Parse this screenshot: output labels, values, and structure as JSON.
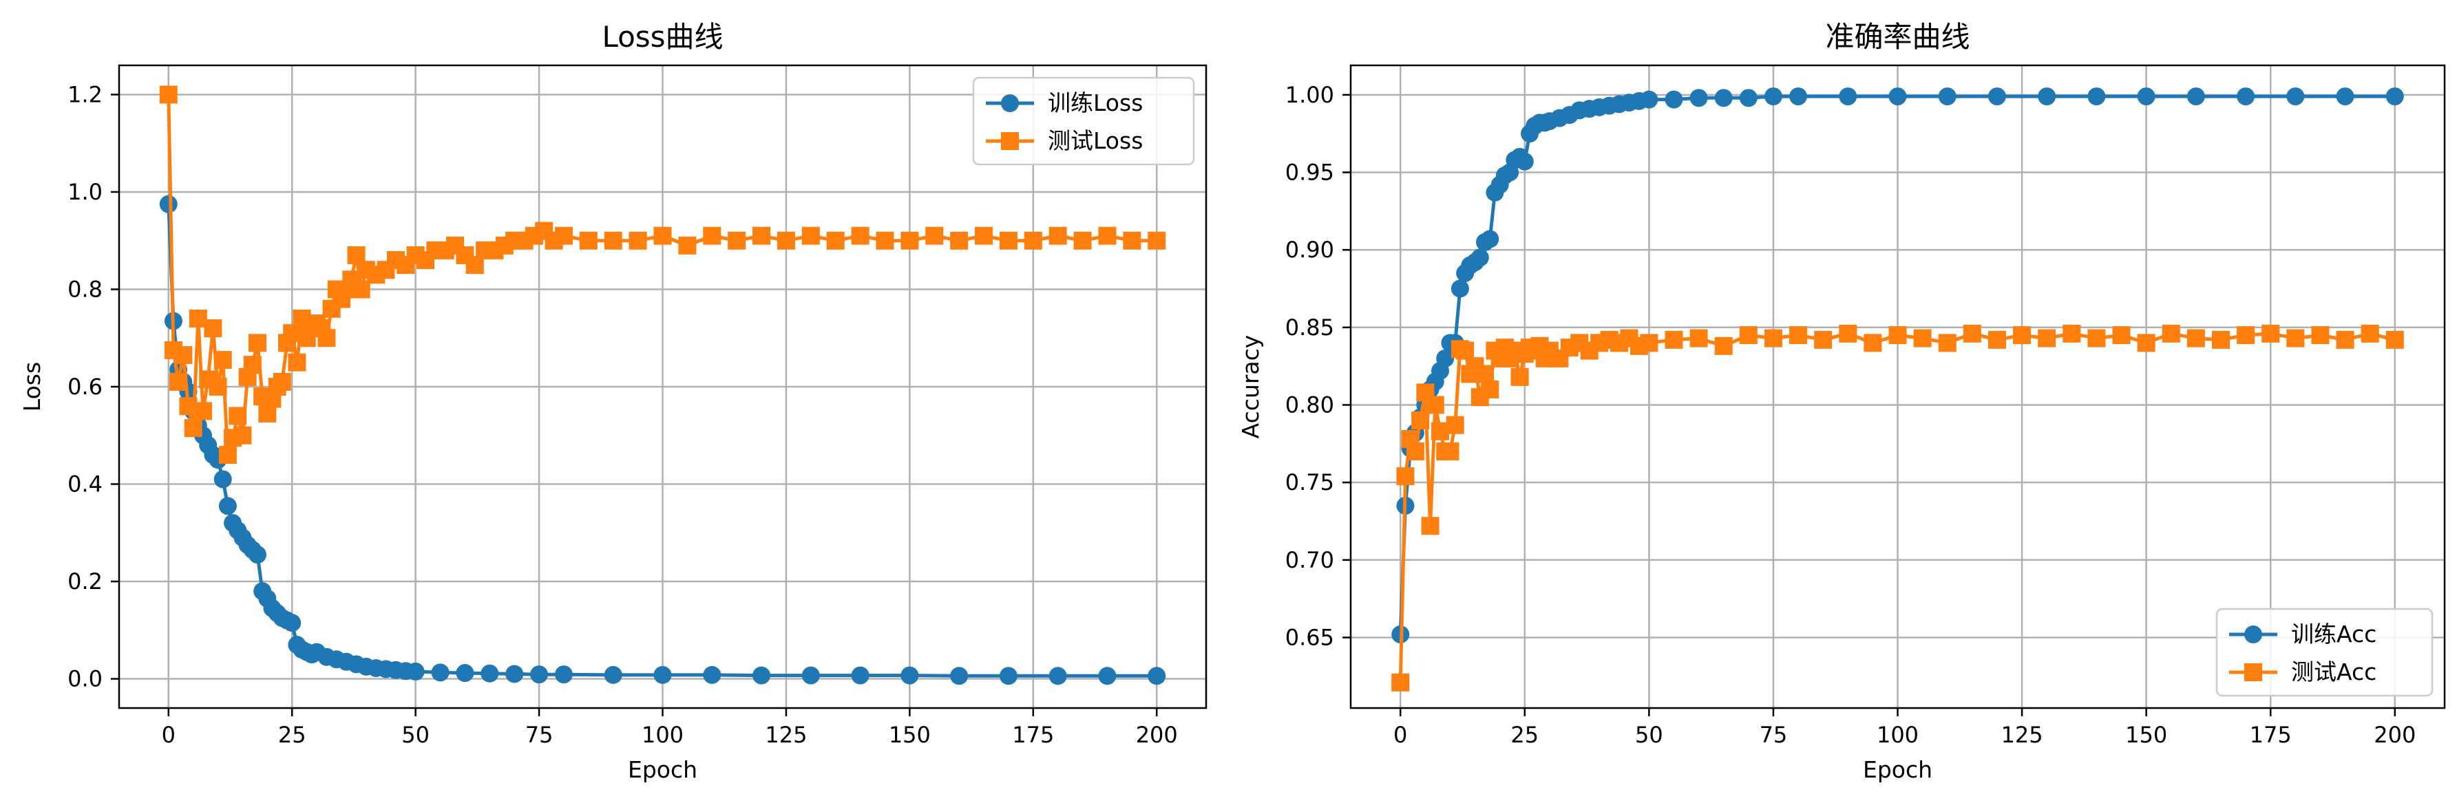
{
  "colors": {
    "train": "#1f77b4",
    "test": "#ff7f0e",
    "grid": "#b0b0b0"
  },
  "chart_data": [
    {
      "type": "line",
      "title": "Loss曲线",
      "xlabel": "Epoch",
      "ylabel": "Loss",
      "xlim": [
        -10,
        210
      ],
      "ylim": [
        -0.06,
        1.26
      ],
      "xticks": [
        0,
        25,
        50,
        75,
        100,
        125,
        150,
        175,
        200
      ],
      "yticks": [
        0.0,
        0.2,
        0.4,
        0.6,
        0.8,
        1.0,
        1.2
      ],
      "ytick_labels": [
        "0.0",
        "0.2",
        "0.4",
        "0.6",
        "0.8",
        "1.0",
        "1.2"
      ],
      "grid": true,
      "legend_position": "upper-right",
      "series": [
        {
          "name": "训练Loss",
          "marker": "circle",
          "x": [
            0,
            1,
            2,
            3,
            4,
            5,
            6,
            7,
            8,
            9,
            10,
            11,
            12,
            13,
            14,
            15,
            16,
            17,
            18,
            19,
            20,
            21,
            22,
            23,
            24,
            25,
            26,
            27,
            28,
            29,
            30,
            32,
            34,
            36,
            38,
            40,
            42,
            44,
            46,
            48,
            50,
            55,
            60,
            65,
            70,
            75,
            80,
            90,
            100,
            110,
            120,
            130,
            140,
            150,
            160,
            170,
            180,
            190,
            200
          ],
          "values": [
            0.975,
            0.735,
            0.635,
            0.61,
            0.59,
            0.55,
            0.52,
            0.5,
            0.48,
            0.46,
            0.45,
            0.41,
            0.355,
            0.32,
            0.305,
            0.29,
            0.275,
            0.265,
            0.255,
            0.18,
            0.165,
            0.145,
            0.135,
            0.125,
            0.12,
            0.115,
            0.07,
            0.06,
            0.055,
            0.05,
            0.055,
            0.045,
            0.04,
            0.035,
            0.03,
            0.025,
            0.022,
            0.02,
            0.018,
            0.016,
            0.015,
            0.013,
            0.012,
            0.011,
            0.01,
            0.009,
            0.009,
            0.008,
            0.008,
            0.008,
            0.007,
            0.007,
            0.007,
            0.007,
            0.006,
            0.006,
            0.006,
            0.006,
            0.006
          ]
        },
        {
          "name": "测试Loss",
          "marker": "square",
          "x": [
            0,
            1,
            2,
            3,
            4,
            5,
            6,
            7,
            8,
            9,
            10,
            11,
            12,
            13,
            14,
            15,
            16,
            17,
            18,
            19,
            20,
            21,
            22,
            23,
            24,
            25,
            26,
            27,
            28,
            29,
            30,
            31,
            32,
            33,
            34,
            35,
            36,
            37,
            38,
            39,
            40,
            42,
            44,
            46,
            48,
            50,
            52,
            54,
            56,
            58,
            60,
            62,
            64,
            66,
            68,
            70,
            72,
            74,
            76,
            78,
            80,
            85,
            90,
            95,
            100,
            105,
            110,
            115,
            120,
            125,
            130,
            135,
            140,
            145,
            150,
            155,
            160,
            165,
            170,
            175,
            180,
            185,
            190,
            195,
            200
          ],
          "values": [
            1.2,
            0.675,
            0.61,
            0.665,
            0.56,
            0.515,
            0.74,
            0.55,
            0.615,
            0.72,
            0.6,
            0.655,
            0.46,
            0.495,
            0.54,
            0.5,
            0.62,
            0.645,
            0.69,
            0.58,
            0.545,
            0.575,
            0.6,
            0.61,
            0.69,
            0.71,
            0.65,
            0.74,
            0.7,
            0.73,
            0.73,
            0.72,
            0.7,
            0.76,
            0.8,
            0.78,
            0.8,
            0.82,
            0.87,
            0.8,
            0.84,
            0.83,
            0.84,
            0.86,
            0.85,
            0.87,
            0.86,
            0.88,
            0.88,
            0.89,
            0.87,
            0.85,
            0.88,
            0.88,
            0.89,
            0.9,
            0.9,
            0.91,
            0.92,
            0.9,
            0.91,
            0.9,
            0.9,
            0.9,
            0.91,
            0.89,
            0.91,
            0.9,
            0.91,
            0.9,
            0.91,
            0.9,
            0.91,
            0.9,
            0.9,
            0.91,
            0.9,
            0.91,
            0.9,
            0.9,
            0.91,
            0.9,
            0.91,
            0.9,
            0.9
          ]
        }
      ]
    },
    {
      "type": "line",
      "title": "准确率曲线",
      "xlabel": "Epoch",
      "ylabel": "Accuracy",
      "xlim": [
        -10,
        210
      ],
      "ylim": [
        0.6045,
        1.019
      ],
      "xticks": [
        0,
        25,
        50,
        75,
        100,
        125,
        150,
        175,
        200
      ],
      "yticks": [
        0.65,
        0.7,
        0.75,
        0.8,
        0.85,
        0.9,
        0.95,
        1.0
      ],
      "ytick_labels": [
        "0.65",
        "0.70",
        "0.75",
        "0.80",
        "0.85",
        "0.90",
        "0.95",
        "1.00"
      ],
      "grid": true,
      "legend_position": "lower-right",
      "series": [
        {
          "name": "训练Acc",
          "marker": "circle",
          "x": [
            0,
            1,
            2,
            3,
            4,
            5,
            6,
            7,
            8,
            9,
            10,
            11,
            12,
            13,
            14,
            15,
            16,
            17,
            18,
            19,
            20,
            21,
            22,
            23,
            24,
            25,
            26,
            27,
            28,
            29,
            30,
            32,
            34,
            36,
            38,
            40,
            42,
            44,
            46,
            48,
            50,
            55,
            60,
            65,
            70,
            75,
            80,
            90,
            100,
            110,
            120,
            130,
            140,
            150,
            160,
            170,
            180,
            190,
            200
          ],
          "values": [
            0.652,
            0.735,
            0.772,
            0.782,
            0.792,
            0.8,
            0.81,
            0.815,
            0.822,
            0.83,
            0.84,
            0.84,
            0.875,
            0.885,
            0.89,
            0.892,
            0.895,
            0.905,
            0.907,
            0.937,
            0.942,
            0.948,
            0.95,
            0.958,
            0.96,
            0.957,
            0.975,
            0.98,
            0.982,
            0.982,
            0.983,
            0.985,
            0.987,
            0.99,
            0.991,
            0.992,
            0.993,
            0.994,
            0.995,
            0.996,
            0.997,
            0.997,
            0.998,
            0.998,
            0.998,
            0.999,
            0.999,
            0.999,
            0.999,
            0.999,
            0.999,
            0.999,
            0.999,
            0.999,
            0.999,
            0.999,
            0.999,
            0.999,
            0.999
          ]
        },
        {
          "name": "测试Acc",
          "marker": "square",
          "x": [
            0,
            1,
            2,
            3,
            4,
            5,
            6,
            7,
            8,
            9,
            10,
            11,
            12,
            13,
            14,
            15,
            16,
            17,
            18,
            19,
            20,
            21,
            22,
            23,
            24,
            25,
            26,
            27,
            28,
            29,
            30,
            32,
            34,
            36,
            38,
            40,
            42,
            44,
            46,
            48,
            50,
            55,
            60,
            65,
            70,
            75,
            80,
            85,
            90,
            95,
            100,
            105,
            110,
            115,
            120,
            125,
            130,
            135,
            140,
            145,
            150,
            155,
            160,
            165,
            170,
            175,
            180,
            185,
            190,
            195,
            200
          ],
          "values": [
            0.621,
            0.754,
            0.778,
            0.77,
            0.79,
            0.808,
            0.722,
            0.8,
            0.783,
            0.77,
            0.77,
            0.787,
            0.836,
            0.835,
            0.82,
            0.825,
            0.805,
            0.82,
            0.81,
            0.835,
            0.83,
            0.837,
            0.83,
            0.835,
            0.818,
            0.833,
            0.837,
            0.835,
            0.838,
            0.83,
            0.835,
            0.83,
            0.837,
            0.84,
            0.835,
            0.84,
            0.842,
            0.84,
            0.843,
            0.838,
            0.84,
            0.842,
            0.843,
            0.838,
            0.845,
            0.843,
            0.845,
            0.842,
            0.846,
            0.84,
            0.845,
            0.843,
            0.84,
            0.846,
            0.842,
            0.845,
            0.843,
            0.846,
            0.843,
            0.845,
            0.84,
            0.846,
            0.843,
            0.842,
            0.845,
            0.846,
            0.843,
            0.845,
            0.842,
            0.846,
            0.842
          ]
        }
      ]
    }
  ]
}
